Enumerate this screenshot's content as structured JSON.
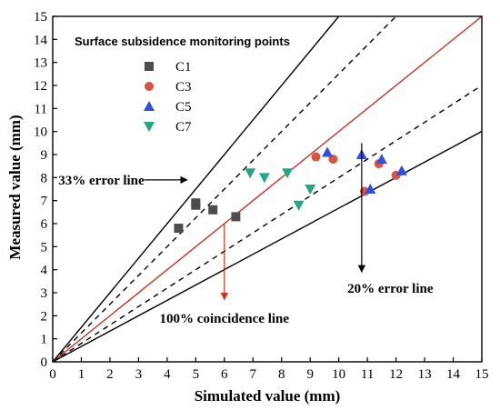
{
  "chart_data": {
    "type": "scatter",
    "xlabel": "Simulated  value (mm)",
    "ylabel": "Measured value (mm)",
    "xlim": [
      0,
      15
    ],
    "ylim": [
      0,
      15
    ],
    "xticks": [
      0,
      1,
      2,
      3,
      4,
      5,
      6,
      7,
      8,
      9,
      10,
      11,
      12,
      13,
      14,
      15
    ],
    "yticks": [
      0,
      1,
      2,
      3,
      4,
      5,
      6,
      7,
      8,
      9,
      10,
      11,
      12,
      13,
      14,
      15
    ],
    "grid": false,
    "legend": {
      "title": "Surface subsidence monitoring points",
      "placement": "top-left"
    },
    "series": [
      {
        "name": "C1",
        "marker": "square",
        "color": "#4d4d4d",
        "points": [
          [
            4.4,
            5.8
          ],
          [
            5.0,
            6.9
          ],
          [
            5.0,
            6.8
          ],
          [
            5.6,
            6.6
          ],
          [
            6.4,
            6.3
          ]
        ]
      },
      {
        "name": "C3",
        "marker": "circle",
        "color": "#d9533f",
        "points": [
          [
            9.2,
            8.9
          ],
          [
            9.8,
            8.8
          ],
          [
            10.9,
            7.4
          ],
          [
            11.4,
            8.6
          ],
          [
            12.0,
            8.1
          ]
        ]
      },
      {
        "name": "C5",
        "marker": "triangle-up",
        "color": "#2f4fe0",
        "points": [
          [
            9.6,
            9.1
          ],
          [
            10.8,
            9.0
          ],
          [
            11.5,
            8.8
          ],
          [
            11.1,
            7.5
          ],
          [
            12.2,
            8.3
          ]
        ]
      },
      {
        "name": "C7",
        "marker": "triangle-down",
        "color": "#22a884",
        "points": [
          [
            6.9,
            8.2
          ],
          [
            7.4,
            8.0
          ],
          [
            8.2,
            8.2
          ],
          [
            8.6,
            6.8
          ],
          [
            9.0,
            7.5
          ]
        ]
      }
    ],
    "reference_lines": [
      {
        "slope": 1.5,
        "style": "solid",
        "color": "#000000"
      },
      {
        "slope": 1.25,
        "style": "dashed",
        "color": "#000000"
      },
      {
        "slope": 1.0,
        "style": "solid",
        "color": "#cc3322"
      },
      {
        "slope": 0.8,
        "style": "dashed",
        "color": "#000000"
      },
      {
        "slope": 0.667,
        "style": "solid",
        "color": "#000000"
      }
    ],
    "annotations": [
      {
        "text": "33% error line",
        "text_at": [
          3.2,
          7.9
        ],
        "text_anchor": "end",
        "arrow_from": [
          3.2,
          7.9
        ],
        "arrow_to": [
          4.7,
          7.9
        ],
        "arrow_color": "#000000"
      },
      {
        "text": "20% error line",
        "text_at": [
          11.8,
          3.2
        ],
        "text_anchor": "middle",
        "arrow_from": [
          10.8,
          9.5
        ],
        "arrow_to": [
          10.8,
          3.9
        ],
        "arrow_color": "#000000"
      },
      {
        "text": "100% coincidence line",
        "text_at": [
          6.0,
          1.9
        ],
        "text_anchor": "middle",
        "arrow_from": [
          6.0,
          6.0
        ],
        "arrow_to": [
          6.0,
          2.7
        ],
        "arrow_color": "#cc3322"
      }
    ]
  }
}
